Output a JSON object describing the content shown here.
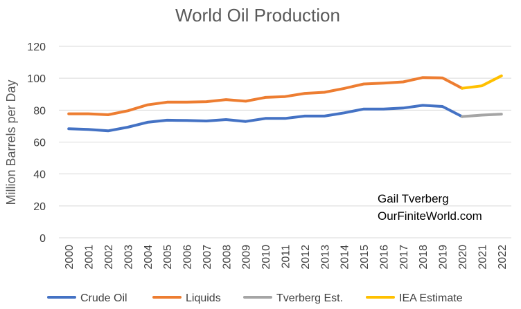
{
  "chart_data": {
    "type": "line",
    "title": "World Oil Production",
    "xlabel": "",
    "ylabel": "Million Barrels per Day",
    "ylim": [
      0,
      120
    ],
    "yticks": [
      0,
      20,
      40,
      60,
      80,
      100,
      120
    ],
    "grid": true,
    "legend_position": "bottom",
    "x": [
      "2000",
      "2001",
      "2002",
      "2003",
      "2004",
      "2005",
      "2006",
      "2007",
      "2008",
      "2009",
      "2010",
      "2011",
      "2012",
      "2013",
      "2014",
      "2015",
      "2016",
      "2017",
      "2018",
      "2019",
      "2020",
      "2021",
      "2022"
    ],
    "series": [
      {
        "name": "Crude Oil",
        "color": "#4472C4",
        "values": [
          68.3,
          67.9,
          67.0,
          69.3,
          72.4,
          73.7,
          73.5,
          73.2,
          74.1,
          72.9,
          74.8,
          74.8,
          76.3,
          76.3,
          78.3,
          80.7,
          80.7,
          81.3,
          83.0,
          82.3,
          76.0,
          null,
          null
        ]
      },
      {
        "name": "Liquids",
        "color": "#ED7D31",
        "values": [
          77.7,
          77.7,
          77.1,
          79.6,
          83.3,
          85.0,
          85.0,
          85.3,
          86.6,
          85.6,
          88.0,
          88.5,
          90.5,
          91.2,
          93.6,
          96.4,
          96.9,
          97.7,
          100.4,
          100.2,
          93.7,
          null,
          null
        ]
      },
      {
        "name": "Tverberg Est.",
        "color": "#A5A5A5",
        "values": [
          null,
          null,
          null,
          null,
          null,
          null,
          null,
          null,
          null,
          null,
          null,
          null,
          null,
          null,
          null,
          null,
          null,
          null,
          null,
          null,
          76.0,
          76.9,
          77.5
        ]
      },
      {
        "name": "IEA Estimate",
        "color": "#FFC000",
        "values": [
          null,
          null,
          null,
          null,
          null,
          null,
          null,
          null,
          null,
          null,
          null,
          null,
          null,
          null,
          null,
          null,
          null,
          null,
          null,
          null,
          93.7,
          95.2,
          101.5
        ]
      }
    ],
    "annotations": [
      "Gail Tverberg",
      "OurFiniteWorld.com"
    ]
  }
}
